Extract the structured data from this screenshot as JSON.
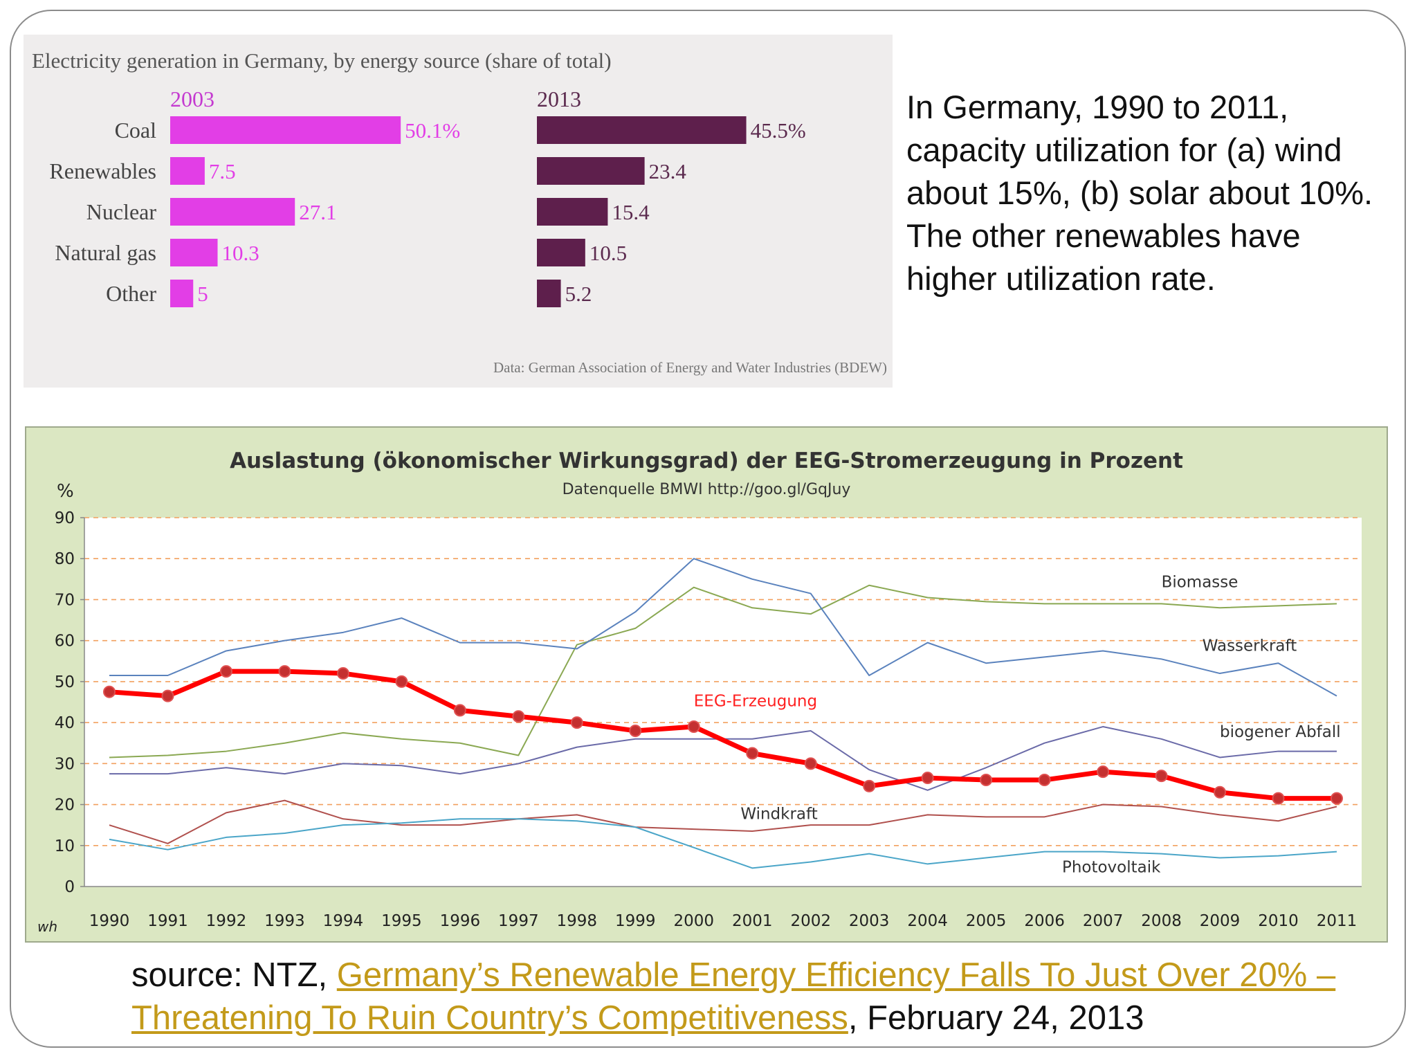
{
  "note": "In Germany, 1990 to 2011, capacity utilization for (a) wind about 15%, (b) solar about 10%. The other renewables have higher utilization rate.",
  "source": {
    "prefix": "source: NTZ, ",
    "link_text": "Germany’s Renewable Energy Efficiency Falls To Just Over 20% – Threatening To Ruin Country’s Competitiveness",
    "suffix": ", February 24, 2013"
  },
  "colors": {
    "bar_2003": "#e23ee6",
    "bar_2013": "#5e1f4c",
    "eeg": "#ff0000",
    "link": "#c39a1a"
  },
  "chart_data": [
    {
      "type": "bar",
      "title": "Electricity generation in Germany, by energy source (share of total)",
      "categories": [
        "Coal",
        "Renewables",
        "Nuclear",
        "Natural gas",
        "Other"
      ],
      "series": [
        {
          "name": "2003",
          "values": [
            50.1,
            7.5,
            27.1,
            10.3,
            5
          ],
          "labels": [
            "50.1%",
            "7.5",
            "27.1",
            "10.3",
            "5"
          ]
        },
        {
          "name": "2013",
          "values": [
            45.5,
            23.4,
            15.4,
            10.5,
            5.2
          ],
          "labels": [
            "45.5%",
            "23.4",
            "15.4",
            "10.5",
            "5.2"
          ]
        }
      ],
      "footnote": "Data: German Association of Energy and Water Industries (BDEW)"
    },
    {
      "type": "line",
      "title": "Auslastung  (ökonomischer Wirkungsgrad) der EEG-Stromerzeugung in Prozent",
      "subtitle": "Datenquelle BMWI  http://goo.gl/GqJuy",
      "ylabel": "%",
      "corner_label": "wh",
      "ylim": [
        0,
        90
      ],
      "yticks": [
        0,
        10,
        20,
        30,
        40,
        50,
        60,
        70,
        80,
        90
      ],
      "grid": "dashed horizontal",
      "x": [
        1990,
        1991,
        1992,
        1993,
        1994,
        1995,
        1996,
        1997,
        1998,
        1999,
        2000,
        2001,
        2002,
        2003,
        2004,
        2005,
        2006,
        2007,
        2008,
        2009,
        2010,
        2011
      ],
      "series": [
        {
          "name": "Biomasse",
          "color": "#8aa852",
          "width": 2,
          "label_x": 2008,
          "label_y": 73,
          "values": [
            31.5,
            32,
            33,
            35,
            37.5,
            36,
            35,
            32,
            59,
            63,
            73,
            68,
            66.5,
            73.5,
            70.5,
            69.5,
            69,
            69,
            69,
            68,
            68.5,
            69
          ]
        },
        {
          "name": "Wasserkraft",
          "color": "#5a82bd",
          "width": 2,
          "label_x": 2008.7,
          "label_y": 57.5,
          "values": [
            51.5,
            51.5,
            57.5,
            60,
            62,
            65.5,
            59.5,
            59.5,
            58,
            67,
            80,
            75,
            71.5,
            51.5,
            59.5,
            54.5,
            56,
            57.5,
            55.5,
            52,
            54.5,
            46.5
          ]
        },
        {
          "name": "biogener Abfall",
          "color": "#6a6aa8",
          "width": 2,
          "label_x": 2009,
          "label_y": 36.5,
          "values": [
            27.5,
            27.5,
            29,
            27.5,
            30,
            29.5,
            27.5,
            30,
            34,
            36,
            36,
            36,
            38,
            28.5,
            23.5,
            29,
            35,
            39,
            36,
            31.5,
            33,
            33
          ]
        },
        {
          "name": "Windkraft",
          "color": "#b0504d",
          "width": 2,
          "label_x": 2000.8,
          "label_y": 16.5,
          "values": [
            15,
            10.5,
            18,
            21,
            16.5,
            15,
            15,
            16.5,
            17.5,
            14.5,
            14,
            13.5,
            15,
            15,
            17.5,
            17,
            17,
            20,
            19.5,
            17.5,
            16,
            19.5
          ]
        },
        {
          "name": "Photovoltaik",
          "color": "#4aa5c8",
          "width": 2,
          "label_x": 2006.3,
          "label_y": 3.5,
          "values": [
            11.5,
            9,
            12,
            13,
            15,
            15.5,
            16.5,
            16.5,
            16,
            14.5,
            9.5,
            4.5,
            6,
            8,
            5.5,
            7,
            8.5,
            8.5,
            8,
            7,
            7.5,
            8.5
          ]
        },
        {
          "name": "EEG-Erzeugung",
          "color": "#ff0000",
          "width": 7,
          "markers": true,
          "label_x": 2000,
          "label_y": 44,
          "values": [
            47.5,
            46.5,
            52.5,
            52.5,
            52,
            50,
            43,
            41.5,
            40,
            38,
            39,
            32.5,
            30,
            24.5,
            26.5,
            26,
            26,
            28,
            27,
            23,
            21.5,
            21.5
          ]
        }
      ]
    }
  ]
}
